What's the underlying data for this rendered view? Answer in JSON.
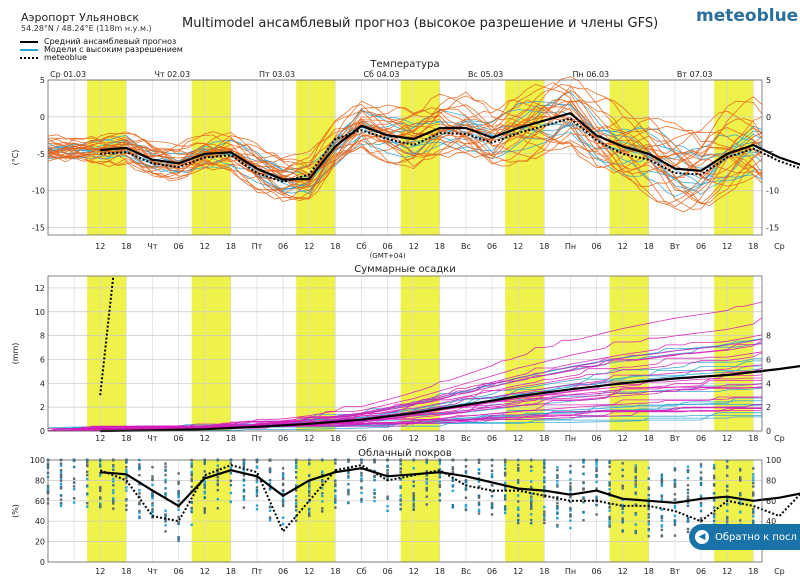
{
  "header": {
    "location": "Аэропорт Ульяновск",
    "coords": "54.28°N / 48.24°E (118m н.у.м.)",
    "title": "Multimodel ансамблевый прогноз (высокое разрешение и члены GFS)",
    "brand": "meteoblue"
  },
  "legend": [
    {
      "label": "Средний ансамблевый прогноз",
      "color": "#000000",
      "style": "solid"
    },
    {
      "label": "Модели с высоким разрешением",
      "color": "#29a3d4",
      "style": "solid"
    },
    {
      "label": "meteoblue",
      "color": "#000000",
      "style": "dotted"
    }
  ],
  "back_button": {
    "label": "Обратно к посл"
  },
  "colors": {
    "ensemble": "#e8641a",
    "hires": "#29a3d4",
    "precip_members": "#d81bb8",
    "day_band": "#eef24a"
  },
  "chart_data": [
    {
      "type": "line",
      "title": "Температура",
      "ylabel": "(°C)",
      "ylim": [
        -16,
        5
      ],
      "yticks": [
        5,
        0,
        -5,
        -10,
        -15
      ],
      "day_labels": [
        "Ср 01.03",
        "Чт 02.03",
        "Пт 03.03",
        "Сб 04.03",
        "Вс 05.03",
        "Пн 06.03",
        "Вт 07.03"
      ],
      "xticks": [
        "12",
        "18",
        "Чт",
        "06",
        "12",
        "18",
        "Пт",
        "06",
        "12",
        "18",
        "Сб",
        "06",
        "12",
        "18",
        "Вс",
        "06",
        "12",
        "18",
        "Пн",
        "06",
        "12",
        "18",
        "Вт",
        "06",
        "12",
        "18",
        "Ср"
      ],
      "x_note": "(GMT+04)",
      "x": [
        0,
        6,
        12,
        18,
        24,
        30,
        36,
        42,
        48,
        54,
        60,
        66,
        72,
        78,
        84,
        90,
        96,
        102,
        108,
        114,
        120,
        126,
        132,
        138,
        144,
        150,
        156,
        162
      ],
      "series": [
        {
          "name": "Средний ансамблевый прогноз",
          "values": [
            -4.5,
            -4.2,
            -5.8,
            -6.3,
            -5.0,
            -4.8,
            -7.0,
            -8.5,
            -8.4,
            -4.0,
            -1.2,
            -2.5,
            -3.0,
            -1.5,
            -1.5,
            -2.8,
            -1.5,
            -0.5,
            0.5,
            -2.5,
            -4.0,
            -5.0,
            -7.0,
            -7.3,
            -5.0,
            -3.8,
            -5.5,
            -6.7
          ],
          "style": "solid"
        },
        {
          "name": "meteoblue",
          "values": [
            -5.0,
            -4.8,
            -6.3,
            -6.8,
            -5.5,
            -5.2,
            -7.6,
            -8.8,
            -7.8,
            -3.0,
            -1.8,
            -3.0,
            -3.8,
            -2.2,
            -2.3,
            -3.5,
            -2.2,
            -1.2,
            -0.2,
            -3.2,
            -5.0,
            -5.8,
            -7.6,
            -7.8,
            -5.5,
            -4.3,
            -6.0,
            -7.2
          ],
          "style": "dotted"
        }
      ]
    },
    {
      "type": "line",
      "title": "Суммарные осадки",
      "ylabel": "(mm)",
      "ylim": [
        0,
        13
      ],
      "yticks": [
        12,
        10,
        8,
        6,
        4,
        2,
        0
      ],
      "yticks_right": [
        8,
        6,
        4,
        2,
        0
      ],
      "xticks": [
        "12",
        "18",
        "Чт",
        "06",
        "12",
        "18",
        "Пт",
        "06",
        "12",
        "18",
        "Сб",
        "06",
        "12",
        "18",
        "Вс",
        "06",
        "12",
        "18",
        "Пн",
        "06",
        "12",
        "18",
        "Вт",
        "06",
        "12",
        "18",
        "Ср"
      ],
      "x": [
        0,
        12,
        24,
        36,
        48,
        60,
        72,
        84,
        96,
        108,
        120,
        132,
        144,
        156,
        162
      ],
      "series": [
        {
          "name": "Средний ансамблевый прогноз",
          "values": [
            0,
            0.05,
            0.15,
            0.35,
            0.6,
            0.95,
            1.5,
            2.2,
            2.9,
            3.5,
            4.0,
            4.4,
            4.7,
            5.2,
            5.5
          ],
          "style": "solid"
        },
        {
          "name": "meteoblue",
          "values": [
            3.0,
            13.0
          ],
          "x": [
            0,
            3
          ],
          "style": "dotted"
        }
      ]
    },
    {
      "type": "line",
      "title": "Облачный покров",
      "ylabel": "(%)",
      "ylim": [
        0,
        100
      ],
      "yticks": [
        100,
        80,
        60,
        40,
        20,
        0
      ],
      "yticks_right": [
        100,
        80,
        60,
        40,
        20
      ],
      "xticks": [
        "12",
        "18",
        "Чт",
        "06",
        "12",
        "18",
        "Пт",
        "06",
        "12",
        "18",
        "Сб",
        "06",
        "12",
        "18",
        "Вс",
        "06",
        "12",
        "18",
        "Пн",
        "06",
        "12",
        "18",
        "Вт",
        "06",
        "12",
        "18",
        "Ср"
      ],
      "x": [
        0,
        6,
        12,
        18,
        24,
        30,
        36,
        42,
        48,
        54,
        60,
        66,
        72,
        78,
        84,
        90,
        96,
        102,
        108,
        114,
        120,
        126,
        132,
        138,
        144,
        150,
        156,
        162
      ],
      "series": [
        {
          "name": "Средний ансамблевый прогноз",
          "values": [
            88,
            86,
            70,
            55,
            82,
            90,
            84,
            65,
            80,
            88,
            92,
            84,
            86,
            88,
            84,
            78,
            72,
            70,
            66,
            70,
            62,
            60,
            58,
            62,
            64,
            60,
            63,
            68
          ],
          "style": "solid"
        },
        {
          "name": "meteoblue",
          "values": [
            90,
            80,
            45,
            40,
            85,
            95,
            88,
            30,
            60,
            90,
            95,
            80,
            85,
            90,
            75,
            70,
            70,
            65,
            60,
            60,
            55,
            55,
            50,
            40,
            60,
            55,
            45,
            72
          ],
          "style": "dotted"
        }
      ]
    }
  ]
}
